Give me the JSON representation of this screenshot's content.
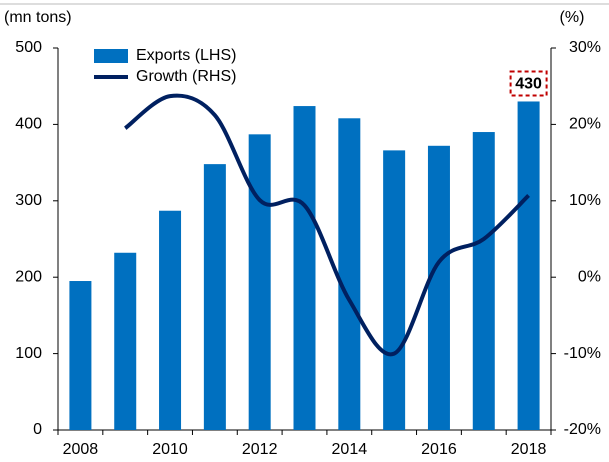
{
  "chart_data": {
    "type": "bar_line",
    "y_label": "(mn tons)",
    "y2_label": "(%)",
    "categories": [
      "2008",
      null,
      "2010",
      null,
      "2012",
      null,
      "2014",
      null,
      "2016",
      null,
      "2018"
    ],
    "series": [
      {
        "name": "Exports (LHS)",
        "type": "bar",
        "color": "#0070c0",
        "values": [
          195,
          232,
          287,
          348,
          387,
          424,
          408,
          366,
          372,
          390,
          430
        ]
      },
      {
        "name": "Growth (RHS)",
        "type": "line",
        "axis": "y2",
        "color": "#002060",
        "values": [
          null,
          19.5,
          23.7,
          21.2,
          10.1,
          9.4,
          -3,
          -10,
          2,
          5,
          10.7
        ]
      }
    ],
    "ylim": [
      0,
      500
    ],
    "yticks": [
      0,
      100,
      200,
      300,
      400,
      500
    ],
    "y2lim": [
      -20,
      30
    ],
    "y2ticks": [
      {
        "value": -20,
        "label": "-20%"
      },
      {
        "value": -10,
        "label": "-10%"
      },
      {
        "value": 0,
        "label": "0%"
      },
      {
        "value": 10,
        "label": "10%"
      },
      {
        "value": 20,
        "label": "20%"
      },
      {
        "value": 30,
        "label": "30%"
      }
    ],
    "legend": "upper left"
  }
}
